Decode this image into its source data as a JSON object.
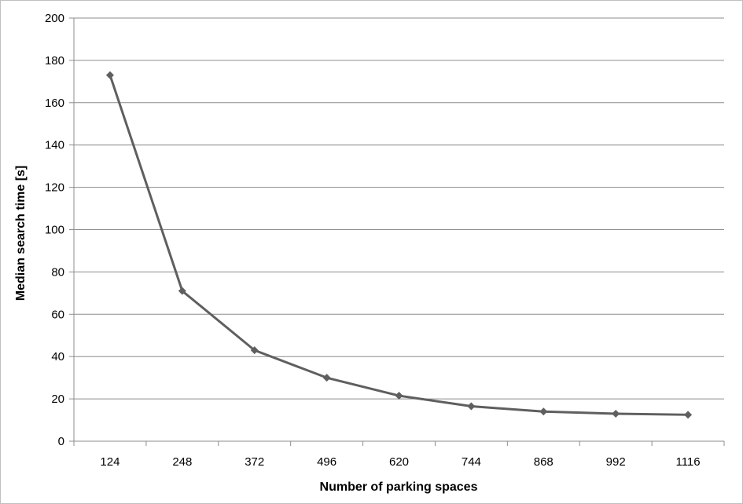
{
  "chart_data": {
    "type": "line",
    "title": "",
    "xlabel": "Number of parking spaces",
    "ylabel": "Median search time [s]",
    "categories": [
      "124",
      "248",
      "372",
      "496",
      "620",
      "744",
      "868",
      "992",
      "1116"
    ],
    "series": [
      {
        "values": [
          173,
          71,
          43,
          30,
          21.5,
          16.5,
          14,
          13,
          12.5
        ]
      }
    ],
    "ylim": [
      0,
      200
    ],
    "yticks": [
      0,
      20,
      40,
      60,
      80,
      100,
      120,
      140,
      160,
      180,
      200
    ],
    "grid": "horizontal",
    "legend": "none",
    "colors": {
      "line": "#5f5f5f",
      "marker": "#5f5f5f",
      "grid": "#8c8c8c",
      "axis": "#8c8c8c"
    }
  }
}
